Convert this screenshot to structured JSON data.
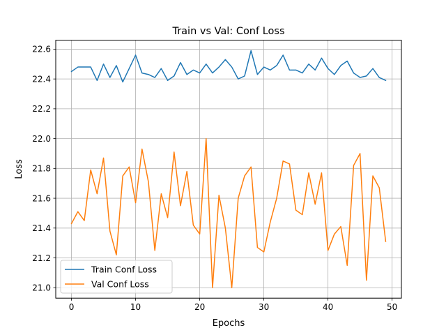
{
  "chart_data": {
    "type": "line",
    "title": "Train vs Val: Conf Loss",
    "xlabel": "Epochs",
    "ylabel": "Loss",
    "xlim": [
      -2.45,
      51.45
    ],
    "ylim": [
      20.93,
      22.66
    ],
    "xticks": [
      0,
      10,
      20,
      30,
      40,
      50
    ],
    "xtick_labels": [
      "0",
      "10",
      "20",
      "30",
      "40",
      "50"
    ],
    "yticks": [
      21.0,
      21.2,
      21.4,
      21.6,
      21.8,
      22.0,
      22.2,
      22.4,
      22.6
    ],
    "ytick_labels": [
      "21.0",
      "21.2",
      "21.4",
      "21.6",
      "21.8",
      "22.0",
      "22.2",
      "22.4",
      "22.6"
    ],
    "grid": true,
    "legend_position": "lower-left",
    "x": [
      0,
      1,
      2,
      3,
      4,
      5,
      6,
      7,
      8,
      9,
      10,
      11,
      12,
      13,
      14,
      15,
      16,
      17,
      18,
      19,
      20,
      21,
      22,
      23,
      24,
      25,
      26,
      27,
      28,
      29,
      30,
      31,
      32,
      33,
      34,
      35,
      36,
      37,
      38,
      39,
      40,
      41,
      42,
      43,
      44,
      45,
      46,
      47,
      48,
      49
    ],
    "series": [
      {
        "name": "Train Conf Loss",
        "color": "#1f77b4",
        "values": [
          22.45,
          22.48,
          22.48,
          22.48,
          22.39,
          22.5,
          22.41,
          22.49,
          22.38,
          22.47,
          22.56,
          22.44,
          22.43,
          22.41,
          22.47,
          22.39,
          22.42,
          22.51,
          22.43,
          22.46,
          22.44,
          22.5,
          22.44,
          22.48,
          22.53,
          22.48,
          22.4,
          22.42,
          22.59,
          22.43,
          22.48,
          22.46,
          22.49,
          22.56,
          22.46,
          22.46,
          22.44,
          22.5,
          22.46,
          22.54,
          22.47,
          22.43,
          22.49,
          22.52,
          22.44,
          22.41,
          22.42,
          22.47,
          22.41,
          22.39
        ]
      },
      {
        "name": "Val Conf Loss",
        "color": "#ff7f0e",
        "values": [
          21.43,
          21.51,
          21.45,
          21.79,
          21.63,
          21.87,
          21.38,
          21.22,
          21.75,
          21.81,
          21.57,
          21.93,
          21.71,
          21.25,
          21.63,
          21.47,
          21.91,
          21.55,
          21.78,
          21.42,
          21.36,
          22.0,
          21.0,
          21.62,
          21.4,
          21.0,
          21.6,
          21.75,
          21.81,
          21.27,
          21.24,
          21.44,
          21.6,
          21.85,
          21.83,
          21.52,
          21.49,
          21.77,
          21.56,
          21.77,
          21.25,
          21.36,
          21.41,
          21.15,
          21.82,
          21.9,
          21.05,
          21.75,
          21.67,
          21.31
        ]
      }
    ]
  }
}
